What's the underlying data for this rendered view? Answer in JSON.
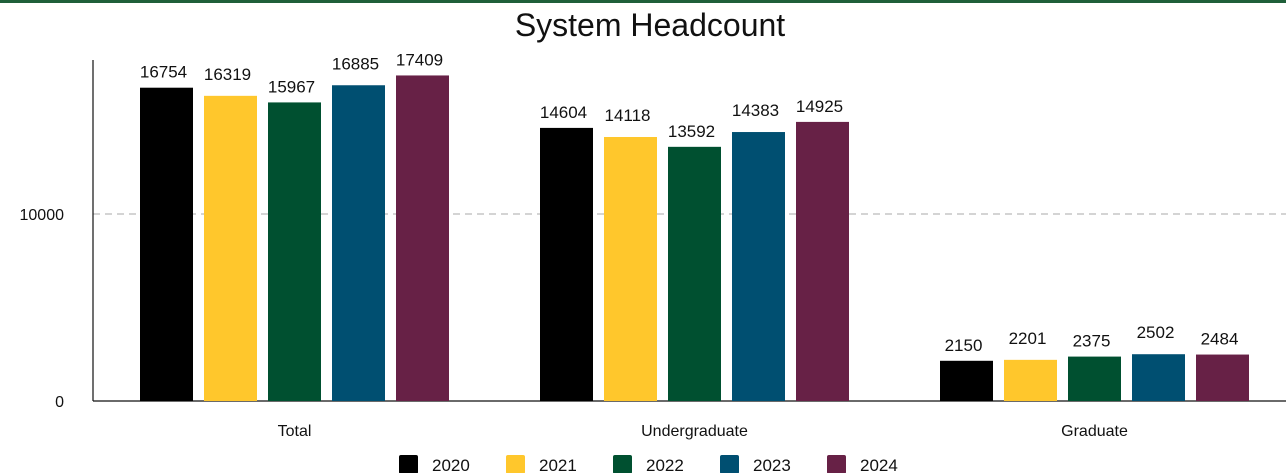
{
  "chart_data": {
    "type": "bar",
    "title": "System Headcount",
    "categories": [
      "Total",
      "Undergraduate",
      "Graduate"
    ],
    "series": [
      {
        "name": "2020",
        "color": "#000000",
        "values": [
          16754,
          14604,
          2150
        ]
      },
      {
        "name": "2021",
        "color": "#FFC72C",
        "values": [
          16319,
          14118,
          2201
        ]
      },
      {
        "name": "2022",
        "color": "#005030",
        "values": [
          15967,
          13592,
          2375
        ]
      },
      {
        "name": "2023",
        "color": "#004F71",
        "values": [
          16885,
          14383,
          2502
        ]
      },
      {
        "name": "2024",
        "color": "#672146",
        "values": [
          17409,
          14925,
          2484
        ]
      }
    ],
    "yticks": [
      0,
      10000
    ],
    "ylim": [
      0,
      18000
    ],
    "gridlines": [
      10000
    ],
    "grid": "dashed horizontal",
    "legend": "bottom-center",
    "xlabel": "",
    "ylabel": ""
  },
  "colors": {
    "top_border": "#1F5F3A",
    "gridline": "#BBBBBB"
  }
}
